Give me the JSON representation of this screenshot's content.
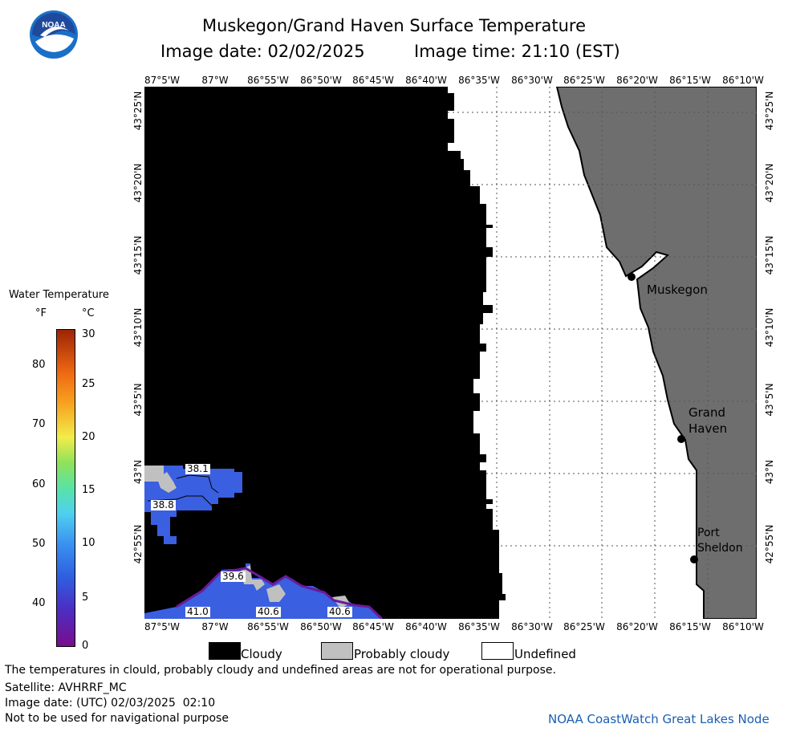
{
  "header": {
    "title": "Muskegon/Grand Haven Surface Temperature",
    "image_date": "Image date: 02/02/2025",
    "image_time": "Image time: 21:10 (EST)"
  },
  "logo": {
    "text": "NOAA"
  },
  "lon_ticks": [
    "87°5'W",
    "87°W",
    "86°55'W",
    "86°50'W",
    "86°45'W",
    "86°40'W",
    "86°35'W",
    "86°30'W",
    "86°25'W",
    "86°20'W",
    "86°15'W",
    "86°10'W"
  ],
  "lat_ticks": [
    "43°25'N",
    "43°20'N",
    "43°15'N",
    "43°10'N",
    "43°5'N",
    "43°N",
    "42°55'N"
  ],
  "cities": [
    {
      "name": "Muskegon"
    },
    {
      "name": "Grand\nHaven"
    },
    {
      "name": "Port\nSheldon"
    }
  ],
  "temp_labels": [
    "38.1",
    "38.8",
    "39.6",
    "41.0",
    "40.6",
    "40.6"
  ],
  "colorbar": {
    "title": "Water Temperature",
    "unit_f": "°F",
    "unit_c": "°C",
    "f_ticks": [
      "80",
      "70",
      "60",
      "50",
      "40"
    ],
    "c_ticks": [
      "30",
      "25",
      "20",
      "15",
      "10",
      "5",
      "0"
    ]
  },
  "legend": {
    "cloudy": "Cloudy",
    "probably_cloudy": "Probably cloudy",
    "undefined": "Undefined",
    "colors": {
      "cloudy": "#000000",
      "probably_cloudy": "#c0c0c0",
      "undefined": "#ffffff",
      "land": "#6e6e6e"
    }
  },
  "footer": {
    "disclaimer": "The temperatures in clould, probably cloudy and undefined areas are not for operational purpose.",
    "satellite": "Satellite: AVHRRF_MC",
    "utc_date": "Image date: (UTC) 02/03/2025  02:10",
    "nav": "Not to be used for navigational purpose",
    "credit": "NOAA CoastWatch Great Lakes Node"
  }
}
